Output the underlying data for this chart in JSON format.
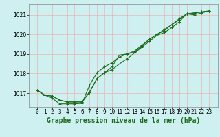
{
  "title": "Graphe pression niveau de la mer (hPa)",
  "xlabel_hours": [
    0,
    1,
    2,
    3,
    4,
    5,
    6,
    7,
    8,
    9,
    10,
    11,
    12,
    13,
    14,
    15,
    16,
    17,
    18,
    19,
    20,
    21,
    22,
    23
  ],
  "line1": [
    1017.15,
    1016.9,
    1016.85,
    1016.65,
    1016.55,
    1016.55,
    1016.55,
    1017.05,
    1017.75,
    1018.05,
    1018.2,
    1018.5,
    1018.75,
    1019.05,
    1019.35,
    1019.65,
    1019.95,
    1020.1,
    1020.35,
    1020.65,
    1021.05,
    1021.1,
    1021.15,
    1021.2
  ],
  "line2": [
    1017.15,
    1016.9,
    1016.75,
    1016.45,
    1016.45,
    1016.45,
    1016.48,
    1017.4,
    1018.05,
    1018.35,
    1018.55,
    1018.85,
    1019.0,
    1019.15,
    1019.45,
    1019.75,
    1020.0,
    1020.25,
    1020.5,
    1020.8,
    1021.05,
    1021.0,
    1021.1,
    1021.2
  ],
  "line3": [
    1017.15,
    1016.9,
    1016.85,
    1016.65,
    1016.55,
    1016.55,
    1016.55,
    1017.05,
    1017.75,
    1018.05,
    1018.35,
    1018.95,
    1019.0,
    1019.1,
    1019.4,
    1019.75,
    1020.0,
    1020.2,
    1020.5,
    1020.75,
    1021.05,
    1021.1,
    1021.15,
    1021.2
  ],
  "ylim": [
    1016.3,
    1021.55
  ],
  "yticks": [
    1017,
    1018,
    1019,
    1020,
    1021
  ],
  "bg_color": "#cef0f0",
  "grid_color": "#e8b4b4",
  "line_color": "#1a6b1a",
  "marker": "+",
  "marker_size": 3,
  "line_width": 0.8,
  "title_fontsize": 7.0,
  "tick_fontsize": 5.5,
  "title_color": "#1a6b1a"
}
